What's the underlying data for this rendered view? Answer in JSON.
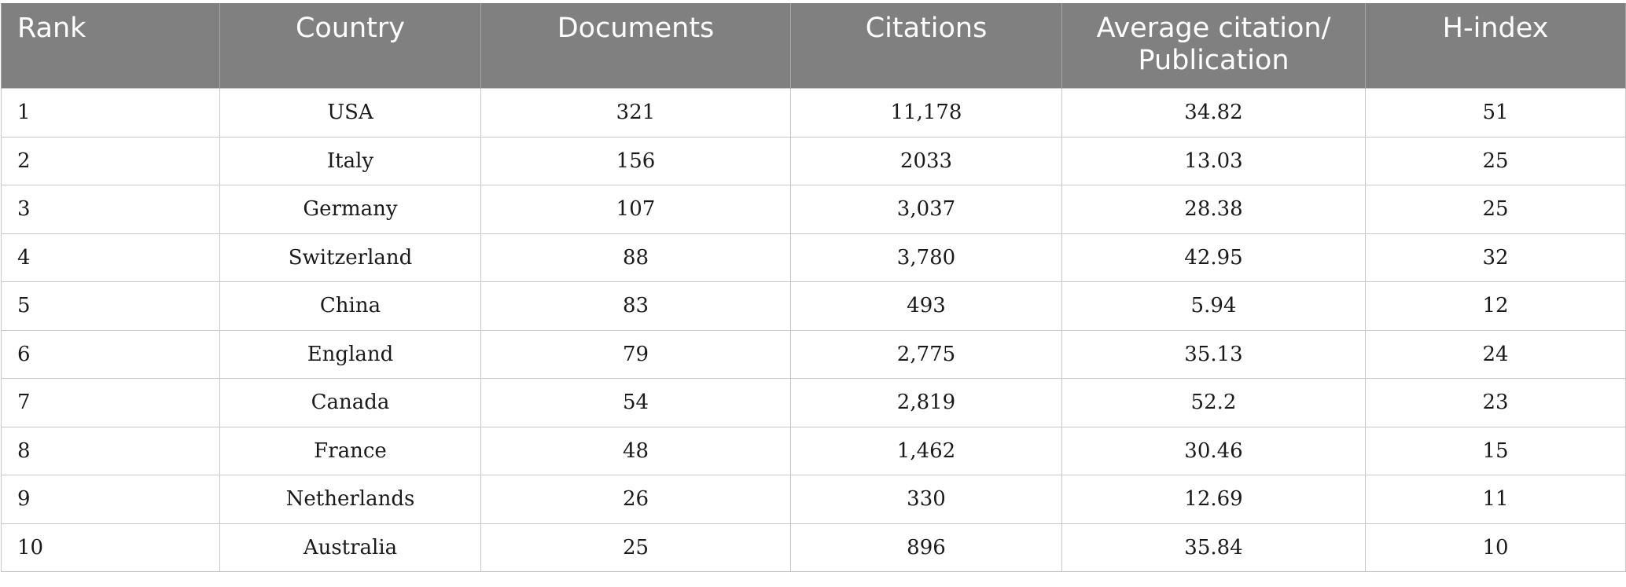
{
  "table": {
    "headers": [
      "Rank",
      "Country",
      "Documents",
      "Citations",
      "Average citation/ Publication",
      "H-index"
    ],
    "rows": [
      [
        "1",
        "USA",
        "321",
        "11,178",
        "34.82",
        "51"
      ],
      [
        "2",
        "Italy",
        "156",
        "2033",
        "13.03",
        "25"
      ],
      [
        "3",
        "Germany",
        "107",
        "3,037",
        "28.38",
        "25"
      ],
      [
        "4",
        "Switzerland",
        "88",
        "3,780",
        "42.95",
        "32"
      ],
      [
        "5",
        "China",
        "83",
        "493",
        "5.94",
        "12"
      ],
      [
        "6",
        "England",
        "79",
        "2,775",
        "35.13",
        "24"
      ],
      [
        "7",
        "Canada",
        "54",
        "2,819",
        "52.2",
        "23"
      ],
      [
        "8",
        "France",
        "48",
        "1,462",
        "30.46",
        "15"
      ],
      [
        "9",
        "Netherlands",
        "26",
        "330",
        "12.69",
        "11"
      ],
      [
        "10",
        "Australia",
        "25",
        "896",
        "35.84",
        "10"
      ]
    ]
  }
}
